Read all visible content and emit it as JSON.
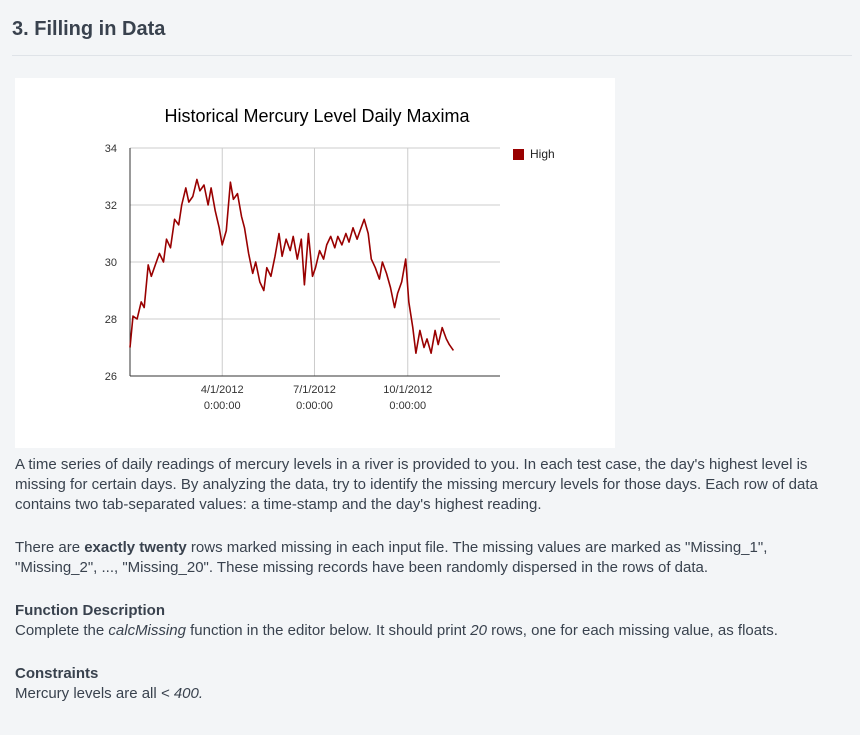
{
  "section": {
    "title": "3. Filling in Data"
  },
  "chart_data": {
    "type": "line",
    "title": "Historical Mercury Level Daily Maxima",
    "xlabel": "",
    "ylabel": "",
    "x_ticks": [
      {
        "date": "4/1/2012",
        "time": "0:00:00"
      },
      {
        "date": "7/1/2012",
        "time": "0:00:00"
      },
      {
        "date": "10/1/2012",
        "time": "0:00:00"
      }
    ],
    "x_range": [
      "2012-01-01",
      "2012-12-31"
    ],
    "ylim": [
      26,
      34
    ],
    "y_ticks": [
      26,
      28,
      30,
      32,
      34
    ],
    "grid": true,
    "legend_position": "top-right",
    "series": [
      {
        "name": "High",
        "color": "#990000",
        "points": [
          [
            "2012-01-01",
            27.0
          ],
          [
            "2012-01-04",
            28.1
          ],
          [
            "2012-01-08",
            28.0
          ],
          [
            "2012-01-12",
            28.6
          ],
          [
            "2012-01-15",
            28.4
          ],
          [
            "2012-01-19",
            29.9
          ],
          [
            "2012-01-22",
            29.5
          ],
          [
            "2012-01-26",
            29.9
          ],
          [
            "2012-01-30",
            30.3
          ],
          [
            "2012-02-03",
            30.0
          ],
          [
            "2012-02-06",
            30.8
          ],
          [
            "2012-02-10",
            30.5
          ],
          [
            "2012-02-14",
            31.5
          ],
          [
            "2012-02-18",
            31.3
          ],
          [
            "2012-02-21",
            32.0
          ],
          [
            "2012-02-25",
            32.6
          ],
          [
            "2012-02-28",
            32.1
          ],
          [
            "2012-03-03",
            32.3
          ],
          [
            "2012-03-07",
            32.9
          ],
          [
            "2012-03-10",
            32.5
          ],
          [
            "2012-03-14",
            32.7
          ],
          [
            "2012-03-18",
            32.0
          ],
          [
            "2012-03-21",
            32.6
          ],
          [
            "2012-03-25",
            31.8
          ],
          [
            "2012-03-29",
            31.2
          ],
          [
            "2012-04-01",
            30.6
          ],
          [
            "2012-04-05",
            31.1
          ],
          [
            "2012-04-09",
            32.8
          ],
          [
            "2012-04-12",
            32.2
          ],
          [
            "2012-04-16",
            32.4
          ],
          [
            "2012-04-20",
            31.6
          ],
          [
            "2012-04-23",
            31.2
          ],
          [
            "2012-04-27",
            30.3
          ],
          [
            "2012-05-01",
            29.6
          ],
          [
            "2012-05-04",
            30.0
          ],
          [
            "2012-05-08",
            29.3
          ],
          [
            "2012-05-12",
            29.0
          ],
          [
            "2012-05-15",
            29.8
          ],
          [
            "2012-05-19",
            29.5
          ],
          [
            "2012-05-23",
            30.2
          ],
          [
            "2012-05-27",
            31.0
          ],
          [
            "2012-05-30",
            30.2
          ],
          [
            "2012-06-03",
            30.8
          ],
          [
            "2012-06-07",
            30.4
          ],
          [
            "2012-06-10",
            30.9
          ],
          [
            "2012-06-14",
            30.1
          ],
          [
            "2012-06-18",
            30.8
          ],
          [
            "2012-06-21",
            29.2
          ],
          [
            "2012-06-25",
            31.0
          ],
          [
            "2012-06-29",
            29.5
          ],
          [
            "2012-07-02",
            29.8
          ],
          [
            "2012-07-06",
            30.4
          ],
          [
            "2012-07-10",
            30.1
          ],
          [
            "2012-07-13",
            30.6
          ],
          [
            "2012-07-17",
            30.9
          ],
          [
            "2012-07-21",
            30.5
          ],
          [
            "2012-07-24",
            30.9
          ],
          [
            "2012-07-28",
            30.6
          ],
          [
            "2012-08-01",
            31.0
          ],
          [
            "2012-08-04",
            30.7
          ],
          [
            "2012-08-08",
            31.2
          ],
          [
            "2012-08-12",
            30.8
          ],
          [
            "2012-08-15",
            31.1
          ],
          [
            "2012-08-19",
            31.5
          ],
          [
            "2012-08-23",
            31.0
          ],
          [
            "2012-08-26",
            30.1
          ],
          [
            "2012-08-30",
            29.8
          ],
          [
            "2012-09-03",
            29.4
          ],
          [
            "2012-09-06",
            30.0
          ],
          [
            "2012-09-10",
            29.6
          ],
          [
            "2012-09-14",
            29.1
          ],
          [
            "2012-09-18",
            28.4
          ],
          [
            "2012-09-21",
            28.9
          ],
          [
            "2012-09-25",
            29.3
          ],
          [
            "2012-09-29",
            30.1
          ],
          [
            "2012-10-02",
            28.6
          ],
          [
            "2012-10-06",
            27.7
          ],
          [
            "2012-10-09",
            26.8
          ],
          [
            "2012-10-13",
            27.6
          ],
          [
            "2012-10-17",
            27.0
          ],
          [
            "2012-10-20",
            27.3
          ],
          [
            "2012-10-24",
            26.8
          ],
          [
            "2012-10-28",
            27.6
          ],
          [
            "2012-10-31",
            27.1
          ],
          [
            "2012-11-04",
            27.7
          ],
          [
            "2012-11-08",
            27.3
          ],
          [
            "2012-11-11",
            27.1
          ],
          [
            "2012-11-15",
            26.9
          ]
        ]
      }
    ]
  },
  "description": {
    "para1": "A time series of daily readings of mercury levels in a river is provided to you. In each test case, the day's highest level is missing for certain days. By analyzing the data, try to identify the missing mercury levels for those days. Each row of data contains two tab-separated values: a time-stamp and the day's highest reading.",
    "para2_pre": "There are ",
    "para2_bold": "exactly twenty",
    "para2_post": " rows marked missing in each input file. The missing values are marked as \"Missing_1\", \"Missing_2\", ..., \"Missing_20\". These missing records have been randomly dispersed in the rows of data."
  },
  "function_description": {
    "heading": "Function Description",
    "text_pre": "Complete the ",
    "func_name": "calcMissing",
    "text_mid": " function in the editor below. It should print ",
    "count": "20",
    "text_post": " rows, one for each missing value, as floats."
  },
  "constraints": {
    "heading": "Constraints",
    "text_pre": "Mercury levels are all ",
    "value": "< 400."
  }
}
